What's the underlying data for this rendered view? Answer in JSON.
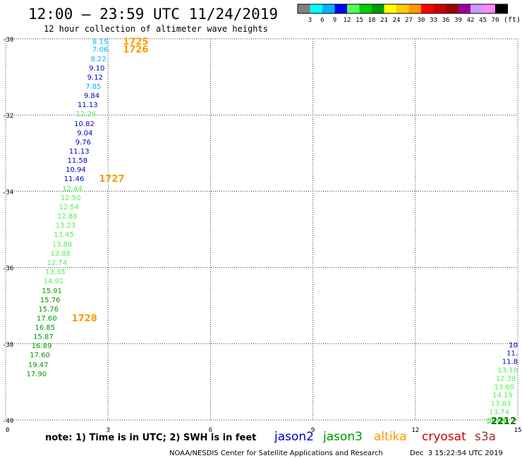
{
  "header": {
    "title": "12:00 – 23:59 UTC 11/24/2019",
    "subtitle": "12 hour collection of altimeter wave heights"
  },
  "legend": {
    "unit": "(ft)",
    "colors": [
      "#808080",
      "#00ffff",
      "#00b4ff",
      "#0000ff",
      "#55ff55",
      "#00cc00",
      "#009900",
      "#ffff00",
      "#ffcc00",
      "#ff9900",
      "#ff0000",
      "#cc0000",
      "#990000",
      "#990099",
      "#cc99ff",
      "#ff88ff",
      "#000000"
    ],
    "ticks": [
      "3",
      "6",
      "9",
      "12",
      "15",
      "18",
      "21",
      "24",
      "27",
      "30",
      "33",
      "36",
      "39",
      "42",
      "45",
      "70"
    ]
  },
  "colors": {
    "jason2": "#0000cc",
    "jason3": "#009900",
    "altika": "#ff9900",
    "cryosat": "#cc0000",
    "s3a": "#993333"
  },
  "chart_data": {
    "type": "scatter",
    "title": "12:00 – 23:59 UTC 11/24/2019",
    "subtitle": "12 hour collection of altimeter wave heights",
    "x_ticks": [
      "0",
      "3",
      "6",
      "9",
      "12",
      "15"
    ],
    "y_ticks": [
      "-30",
      "-32",
      "-34",
      "-36",
      "-38",
      "-40"
    ],
    "xlim": [
      0,
      15
    ],
    "ylim": [
      -40,
      -30
    ],
    "grid": true,
    "labels": [
      {
        "x": 3.0,
        "y": -30.05,
        "text": "8.15",
        "color": "#00b4ff"
      },
      {
        "x": 3.0,
        "y": -30.25,
        "text": "7.06",
        "color": "#00b4ff"
      },
      {
        "x": 2.95,
        "y": -30.5,
        "text": "8.22",
        "color": "#00b4ff"
      },
      {
        "x": 2.9,
        "y": -30.74,
        "text": "9.10",
        "color": "#0000cc"
      },
      {
        "x": 2.85,
        "y": -30.98,
        "text": "9.12",
        "color": "#0000cc"
      },
      {
        "x": 2.8,
        "y": -31.22,
        "text": "7.85",
        "color": "#00b4ff"
      },
      {
        "x": 2.75,
        "y": -31.46,
        "text": "9.84",
        "color": "#0000cc"
      },
      {
        "x": 2.7,
        "y": -31.7,
        "text": "11.13",
        "color": "#0000cc"
      },
      {
        "x": 2.65,
        "y": -31.94,
        "text": "12.36",
        "color": "#55ee55"
      },
      {
        "x": 2.6,
        "y": -32.2,
        "text": "10.82",
        "color": "#0000cc"
      },
      {
        "x": 2.55,
        "y": -32.44,
        "text": "9.04",
        "color": "#0000cc"
      },
      {
        "x": 2.5,
        "y": -32.68,
        "text": "9.76",
        "color": "#0000cc"
      },
      {
        "x": 2.45,
        "y": -32.92,
        "text": "11.13",
        "color": "#0000cc"
      },
      {
        "x": 2.4,
        "y": -33.16,
        "text": "11.58",
        "color": "#0000cc"
      },
      {
        "x": 2.35,
        "y": -33.4,
        "text": "10.94",
        "color": "#0000cc"
      },
      {
        "x": 2.3,
        "y": -33.64,
        "text": "11.46",
        "color": "#0000cc"
      },
      {
        "x": 2.25,
        "y": -33.9,
        "text": "12.44",
        "color": "#55ee55"
      },
      {
        "x": 2.2,
        "y": -34.14,
        "text": "12.50",
        "color": "#55ee55"
      },
      {
        "x": 2.15,
        "y": -34.38,
        "text": "12.54",
        "color": "#55ee55"
      },
      {
        "x": 2.1,
        "y": -34.62,
        "text": "12.88",
        "color": "#55ee55"
      },
      {
        "x": 2.05,
        "y": -34.86,
        "text": "13.23",
        "color": "#55ee55"
      },
      {
        "x": 2.0,
        "y": -35.1,
        "text": "13.45",
        "color": "#55ee55"
      },
      {
        "x": 1.95,
        "y": -35.36,
        "text": "13.86",
        "color": "#55ee55"
      },
      {
        "x": 1.9,
        "y": -35.6,
        "text": "13.88",
        "color": "#55ee55"
      },
      {
        "x": 1.8,
        "y": -35.84,
        "text": "12.74",
        "color": "#55ee55"
      },
      {
        "x": 1.75,
        "y": -36.08,
        "text": "13.35",
        "color": "#55ee55"
      },
      {
        "x": 1.7,
        "y": -36.32,
        "text": "14.91",
        "color": "#55ee55"
      },
      {
        "x": 1.65,
        "y": -36.58,
        "text": "15.91",
        "color": "#009900"
      },
      {
        "x": 1.6,
        "y": -36.82,
        "text": "15.76",
        "color": "#009900"
      },
      {
        "x": 1.55,
        "y": -37.06,
        "text": "15.76",
        "color": "#009900"
      },
      {
        "x": 1.5,
        "y": -37.3,
        "text": "17.60",
        "color": "#009900"
      },
      {
        "x": 1.45,
        "y": -37.54,
        "text": "16.85",
        "color": "#009900"
      },
      {
        "x": 1.4,
        "y": -37.78,
        "text": "15.87",
        "color": "#009900"
      },
      {
        "x": 1.35,
        "y": -38.02,
        "text": "16.89",
        "color": "#009900"
      },
      {
        "x": 1.3,
        "y": -38.26,
        "text": "17.60",
        "color": "#009900"
      },
      {
        "x": 1.25,
        "y": -38.52,
        "text": "19.47",
        "color": "#009900"
      },
      {
        "x": 1.2,
        "y": -38.76,
        "text": "17.90",
        "color": "#009900"
      },
      {
        "x": 15.0,
        "y": -38.0,
        "text": "10",
        "color": "#0000cc"
      },
      {
        "x": 15.0,
        "y": -38.22,
        "text": "11.",
        "color": "#0000cc"
      },
      {
        "x": 15.0,
        "y": -38.44,
        "text": "11.8",
        "color": "#0000cc"
      },
      {
        "x": 15.0,
        "y": -38.66,
        "text": "13.10",
        "color": "#55ee55"
      },
      {
        "x": 14.95,
        "y": -38.88,
        "text": "12.38",
        "color": "#55ee55"
      },
      {
        "x": 14.9,
        "y": -39.1,
        "text": "13.60",
        "color": "#55ee55"
      },
      {
        "x": 14.85,
        "y": -39.32,
        "text": "14.19",
        "color": "#55ee55"
      },
      {
        "x": 14.8,
        "y": -39.54,
        "text": "13.83",
        "color": "#55ee55"
      },
      {
        "x": 14.75,
        "y": -39.76,
        "text": "13.74",
        "color": "#55ee55"
      },
      {
        "x": 14.7,
        "y": -39.98,
        "text": "14.10",
        "color": "#55ee55"
      },
      {
        "x": 14.65,
        "y": -40.0,
        "text": "13.88",
        "color": "#55ee55"
      }
    ],
    "time_labels": [
      {
        "x": 3.0,
        "y": -30.05,
        "text": "1725",
        "color": "#ff9900"
      },
      {
        "x": 3.0,
        "y": -30.25,
        "text": "1726",
        "color": "#ff9900"
      },
      {
        "x": 2.3,
        "y": -33.64,
        "text": "1727",
        "color": "#ff9900"
      },
      {
        "x": 1.5,
        "y": -37.3,
        "text": "1728",
        "color": "#ff9900"
      },
      {
        "x": 15.0,
        "y": -40.0,
        "text": "2212",
        "color": "#007700"
      }
    ]
  },
  "footer": {
    "note": "note: 1) Time is in UTC; 2) SWH is in feet",
    "satellites": [
      "jason2",
      "jason3",
      "altika",
      "cryosat",
      "s3a"
    ],
    "credit": "NOAA/NESDIS Center for Satellite Applications and Research",
    "timestamp": "Dec  3 15:22:54 UTC 2019"
  }
}
